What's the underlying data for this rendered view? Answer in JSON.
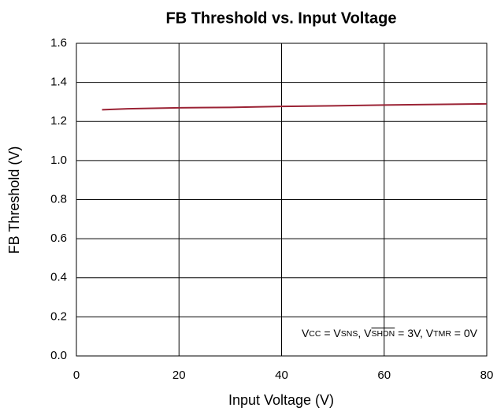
{
  "chart_data": {
    "type": "line",
    "title": "FB Threshold vs. Input Voltage",
    "x_label": "Input Voltage (V)",
    "y_label": "FB Threshold (V)",
    "annotation": [
      "V",
      "CC",
      " = V",
      "SNS",
      ", V",
      "SHDN",
      " = 3V, V",
      "TMR",
      " = 0V"
    ],
    "x": [
      5,
      10,
      20,
      30,
      40,
      50,
      60,
      70,
      80
    ],
    "series": [
      {
        "name": "FB Threshold",
        "color": "#9b2335",
        "values": [
          1.26,
          1.265,
          1.27,
          1.272,
          1.277,
          1.28,
          1.284,
          1.287,
          1.29
        ]
      }
    ],
    "xlim": [
      0,
      80
    ],
    "xticks": [
      0,
      20,
      40,
      60,
      80
    ],
    "ylim": [
      0,
      1.6
    ],
    "yticks": [
      {
        "value": 0,
        "label": "0.0"
      },
      0.2,
      0.4,
      0.6,
      0.8,
      {
        "value": 1,
        "label": "1.0"
      },
      1.2,
      1.4,
      1.6
    ],
    "grid": true
  }
}
